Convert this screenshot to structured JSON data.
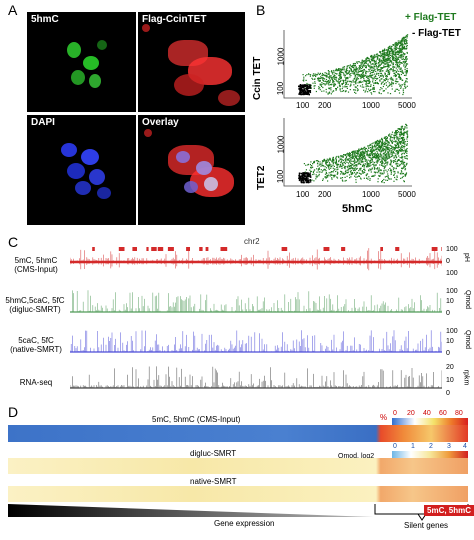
{
  "panel_a": {
    "letter": "A",
    "images": [
      {
        "label": "5hmC",
        "stain": "green"
      },
      {
        "label": "Flag-CcinTET",
        "stain": "red"
      },
      {
        "label": "DAPI",
        "stain": "blue"
      },
      {
        "label": "Overlay",
        "stain": "merge"
      }
    ]
  },
  "panel_b": {
    "letter": "B",
    "legend": {
      "plus": "+ Flag-TET",
      "minus": "- Flag-TET"
    },
    "colors": {
      "plus": "#1f7a1f",
      "minus": "#000000"
    },
    "top": {
      "ylabel": "Ccin TET",
      "yticks": [
        "1000",
        "100"
      ],
      "xticks": [
        "100",
        "200",
        "1000",
        "5000"
      ]
    },
    "bottom": {
      "ylabel": "TET2",
      "yticks": [
        "1000",
        "100"
      ],
      "xticks": [
        "100",
        "200",
        "1000",
        "5000"
      ],
      "xlabel": "5hmC"
    }
  },
  "panel_c": {
    "letter": "C",
    "chrom": "chr2",
    "tracks": [
      {
        "label_lines": [
          "5mC, 5hmC",
          "(CMS-Input)"
        ],
        "color": "#d42a2a",
        "ticks": [
          "100",
          "0",
          "100"
        ],
        "unit": "pH"
      },
      {
        "label_lines": [
          "5hmC,5caC, 5fC",
          "(digluc-SMRT)"
        ],
        "color": "#4f9a57",
        "ticks": [
          "100",
          "10",
          "0"
        ],
        "unit": "Qmod"
      },
      {
        "label_lines": [
          "5caC, 5fC",
          "(native-SMRT)"
        ],
        "color": "#4a4ad8",
        "ticks": [
          "100",
          "10",
          "0"
        ],
        "unit": "Qmod"
      },
      {
        "label_lines": [
          "RNA-seq"
        ],
        "color": "#444444",
        "ticks": [
          "20",
          "10",
          "0"
        ],
        "unit": "rpkm"
      }
    ]
  },
  "panel_d": {
    "letter": "D",
    "rows": [
      {
        "title": "5mC, 5hmC (CMS-Input)"
      },
      {
        "title": "digluc-SMRT"
      },
      {
        "title": "native-SMRT"
      }
    ],
    "scale1": {
      "unit": "%",
      "ticks": [
        "0",
        "20",
        "40",
        "60",
        "80"
      ]
    },
    "scale2": {
      "unit": "Qmod, log2",
      "ticks": [
        "0",
        "1",
        "2",
        "3",
        "4"
      ]
    },
    "gene_expression": "Gene expression",
    "silent_badge": "5mC, 5hmC",
    "silent_genes": "Silent genes"
  }
}
